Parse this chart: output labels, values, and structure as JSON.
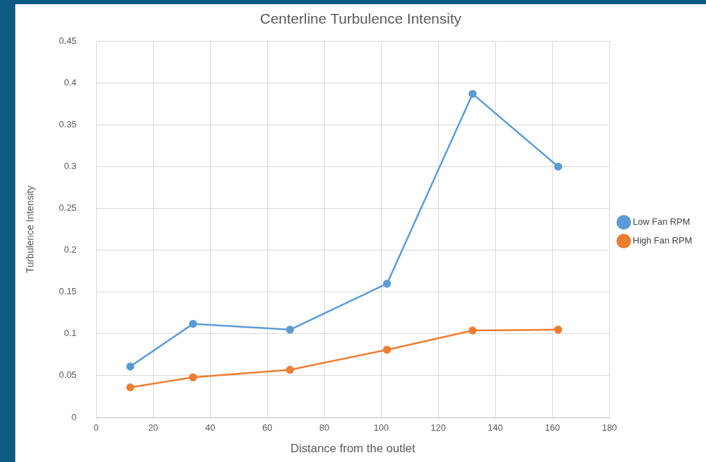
{
  "chart_data": {
    "type": "line",
    "title": "Centerline Turbulence Intensity",
    "xlabel": "Distance from the outlet",
    "ylabel": "Turbulence Intensity",
    "x": [
      12,
      34,
      68,
      102,
      132,
      162
    ],
    "series": [
      {
        "name": "Low Fan RPM",
        "color": "#5b9bd5",
        "values": [
          0.061,
          0.112,
          0.105,
          0.16,
          0.387,
          0.3
        ]
      },
      {
        "name": "High Fan RPM",
        "color": "#ed7d31",
        "values": [
          0.036,
          0.048,
          0.057,
          0.081,
          0.104,
          0.105
        ]
      }
    ],
    "xlim": [
      0,
      180
    ],
    "xticks": [
      0,
      20,
      40,
      60,
      80,
      100,
      120,
      140,
      160,
      180
    ],
    "ylim": [
      0,
      0.45
    ],
    "yticks": [
      0,
      0.05,
      0.1,
      0.15,
      0.2,
      0.25,
      0.3,
      0.35,
      0.4,
      0.45
    ],
    "grid": true,
    "legend": "right",
    "marker": "circle",
    "line_style": "solid"
  }
}
